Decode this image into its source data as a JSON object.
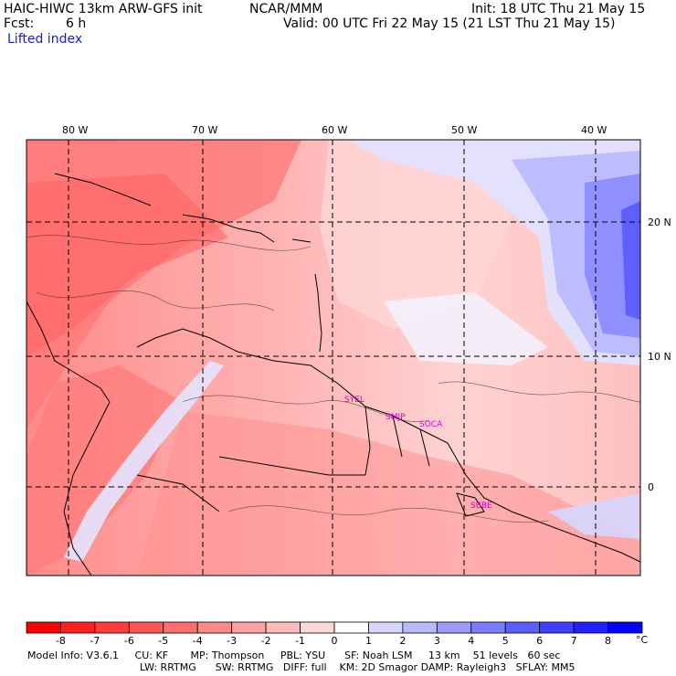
{
  "header": {
    "model_title": "HAIC-HIWC 13km ARW-GFS init",
    "org": "NCAR/MMM",
    "init": "Init: 18 UTC Thu 21 May 15",
    "fcst_label": "Fcst:",
    "fcst_value": "6 h",
    "valid": "Valid: 00 UTC Fri 22 May 15 (21 LST Thu 21 May 15)",
    "field": "Lifted index"
  },
  "map": {
    "lon_labels": [
      "80 W",
      "70 W",
      "60 W",
      "50 W",
      "40 W"
    ],
    "lat_labels": [
      "20 N",
      "10 N",
      "0"
    ],
    "stations": [
      "SYEL",
      "SMJP",
      "SOCA",
      "SBBE"
    ]
  },
  "colorbar": {
    "labels": [
      "-8",
      "-7",
      "-6",
      "-5",
      "-4",
      "-3",
      "-2",
      "-1",
      "0",
      "1",
      "2",
      "3",
      "4",
      "5",
      "6",
      "7",
      "8"
    ],
    "unit": "°C",
    "colors": [
      "#ff0000",
      "#ff1f1f",
      "#ff3b3b",
      "#ff5555",
      "#ff6e6e",
      "#ff8888",
      "#ffa3a3",
      "#ffbcbc",
      "#ffd8d8",
      "#ffffff",
      "#d6d6ff",
      "#b8b8ff",
      "#9a9aff",
      "#7c7cff",
      "#5e5eff",
      "#3f3fff",
      "#1f1fff",
      "#0000ff"
    ]
  },
  "footer": {
    "line1": "Model Info: V3.6.1     CU: KF       MP: Thompson     PBL: YSU      SF: Noah LSM     13 km    51 levels   60 sec",
    "line2": "LW: RRTMG      SW: RRTMG   DIFF: full    KM: 2D Smagor DAMP: Rayleigh3   SFLAY: MM5"
  }
}
